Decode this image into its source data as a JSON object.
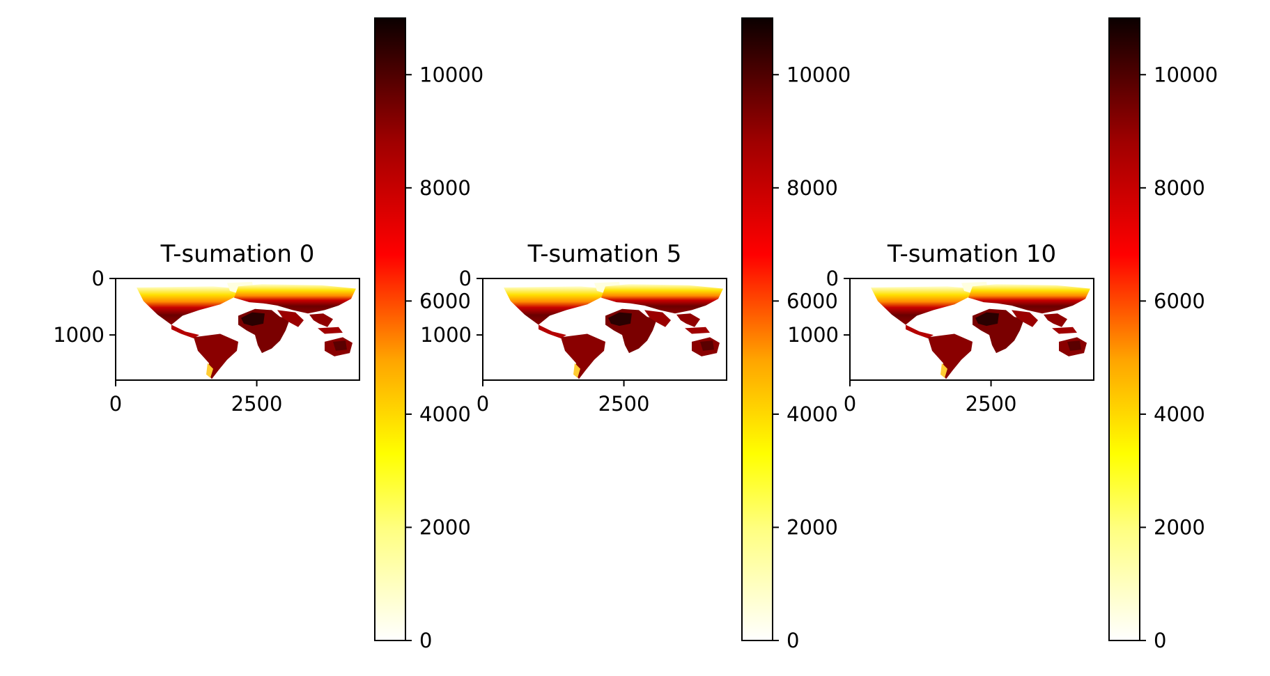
{
  "chart_data": [
    {
      "type": "heatmap",
      "title": "T-sumation 0",
      "x_ticks": [
        0,
        2500
      ],
      "y_ticks": [
        0,
        1000
      ],
      "xlim": [
        0,
        4320
      ],
      "ylim": [
        1800,
        0
      ],
      "colormap": "hot_r",
      "colorbar": {
        "range": [
          0,
          11000
        ],
        "ticks": [
          0,
          2000,
          4000,
          6000,
          8000,
          10000
        ]
      },
      "map_colors": {
        "low": "#ffffd0",
        "mid": "#ff8a00",
        "high": "#8b0000",
        "max": "#1a0000"
      }
    },
    {
      "type": "heatmap",
      "title": "T-sumation 5",
      "x_ticks": [
        0,
        2500
      ],
      "y_ticks": [
        0,
        1000
      ],
      "xlim": [
        0,
        4320
      ],
      "ylim": [
        1800,
        0
      ],
      "colormap": "hot_r",
      "colorbar": {
        "range": [
          0,
          11000
        ],
        "ticks": [
          0,
          2000,
          4000,
          6000,
          8000,
          10000
        ]
      },
      "map_colors": {
        "low": "#ffffd0",
        "mid": "#ff8a00",
        "high": "#8b0000",
        "max": "#1a0000"
      }
    },
    {
      "type": "heatmap",
      "title": "T-sumation 10",
      "x_ticks": [
        0,
        2500
      ],
      "y_ticks": [
        0,
        1000
      ],
      "xlim": [
        0,
        4320
      ],
      "ylim": [
        1800,
        0
      ],
      "colormap": "hot_r",
      "colorbar": {
        "range": [
          0,
          11000
        ],
        "ticks": [
          0,
          2000,
          4000,
          6000,
          8000,
          10000
        ]
      },
      "map_colors": {
        "low": "#ffffd0",
        "mid": "#ff8a00",
        "high": "#8b0000",
        "max": "#1a0000"
      }
    }
  ]
}
